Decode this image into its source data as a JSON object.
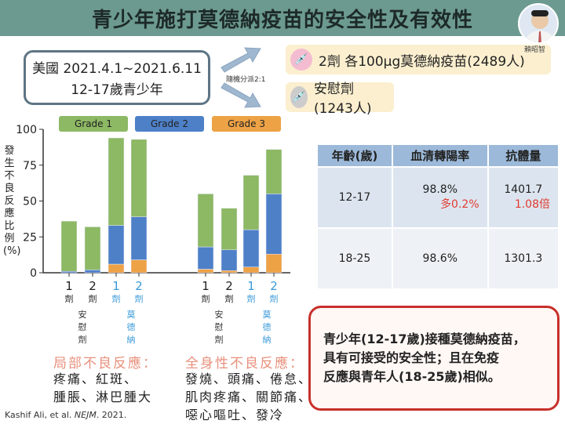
{
  "header": {
    "title": "青少年施打莫德納疫苗的安全性及有效性",
    "presenter": "賴昭智"
  },
  "study": {
    "line1": "美國 2021.4.1~2021.6.11",
    "line2": "12-17歲青少年",
    "randomization": "隨機分派2:1"
  },
  "arms": [
    {
      "label": "2劑 各100μg莫德納疫苗(2489人)",
      "icon": "syringe-icon"
    },
    {
      "label": "安慰劑 (1243人)",
      "icon": "syringe-icon"
    }
  ],
  "chart_data": {
    "type": "bar",
    "stacked": true,
    "ylabel": "發生不良反應比例(%)",
    "ylim": [
      0,
      100
    ],
    "yticks": [
      "0",
      "25",
      "50",
      "75",
      "100"
    ],
    "legend": [
      {
        "name": "Grade 1",
        "color": "#8db864"
      },
      {
        "name": "Grade 2",
        "color": "#4e80c8"
      },
      {
        "name": "Grade 3",
        "color": "#eda245"
      }
    ],
    "groups": [
      {
        "name": "局部不良反應",
        "bars": [
          {
            "dose": "1",
            "unit": "劑",
            "arm": "安慰劑",
            "g3": 0,
            "g2": 1,
            "g1": 35
          },
          {
            "dose": "2",
            "unit": "劑",
            "arm": "安慰劑",
            "g3": 0,
            "g2": 2,
            "g1": 30
          },
          {
            "dose": "1",
            "unit": "劑",
            "arm": "莫德納",
            "g3": 6,
            "g2": 27,
            "g1": 61
          },
          {
            "dose": "2",
            "unit": "劑",
            "arm": "莫德納",
            "g3": 9,
            "g2": 30,
            "g1": 54
          }
        ]
      },
      {
        "name": "全身性不良反應",
        "bars": [
          {
            "dose": "1",
            "unit": "劑",
            "arm": "安慰劑",
            "g3": 2.5,
            "g2": 15.5,
            "g1": 37
          },
          {
            "dose": "2",
            "unit": "劑",
            "arm": "安慰劑",
            "g3": 1.5,
            "g2": 14.5,
            "g1": 29
          },
          {
            "dose": "1",
            "unit": "劑",
            "arm": "莫德納",
            "g3": 4,
            "g2": 26,
            "g1": 38
          },
          {
            "dose": "2",
            "unit": "劑",
            "arm": "莫德納",
            "g3": 13,
            "g2": 42,
            "g1": 31
          }
        ]
      }
    ]
  },
  "arm_labels": {
    "placebo": [
      "安",
      "慰",
      "劑"
    ],
    "vaccine": [
      "莫",
      "德",
      "納"
    ]
  },
  "local": {
    "heading": "局部不良反應：",
    "line1": "疼痛、紅斑、",
    "line2": "腫脹、淋巴腫大"
  },
  "systemic": {
    "heading": "全身性不良反應：",
    "line1": "發燒、頭痛、倦怠、",
    "line2": "肌肉疼痛、關節痛、",
    "line3": "噁心嘔吐、發冷"
  },
  "citation": {
    "authors": "Kashif Ali, et al.",
    "journal": "NEJM",
    "year": ". 2021."
  },
  "table": {
    "headers": [
      "年齡(歲)",
      "血清轉陽率",
      "抗體量"
    ],
    "rows": [
      {
        "age": "12-17",
        "sero": "98.8%",
        "sero_diff": "多0.2%",
        "titer": "1401.7",
        "titer_ratio": "1.08倍"
      },
      {
        "age": "18-25",
        "sero": "98.6%",
        "titer": "1301.3"
      }
    ]
  },
  "conclusion": {
    "line1": "青少年(12-17歲)接種莫德納疫苗，",
    "line2": "具有可接受的安全性；且在免疫",
    "line3": "反應與青年人(18-25歲)相似。"
  }
}
